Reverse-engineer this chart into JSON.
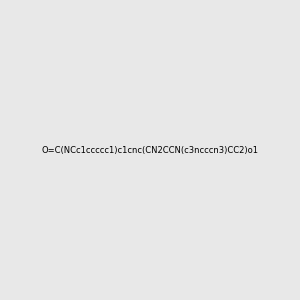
{
  "smiles": "O=C(NCc1ccccc1)c1cnc(CN2CCN(c3ncccn3)CC2)o1",
  "image_size": 300,
  "background_color": "#e8e8e8",
  "title": ""
}
